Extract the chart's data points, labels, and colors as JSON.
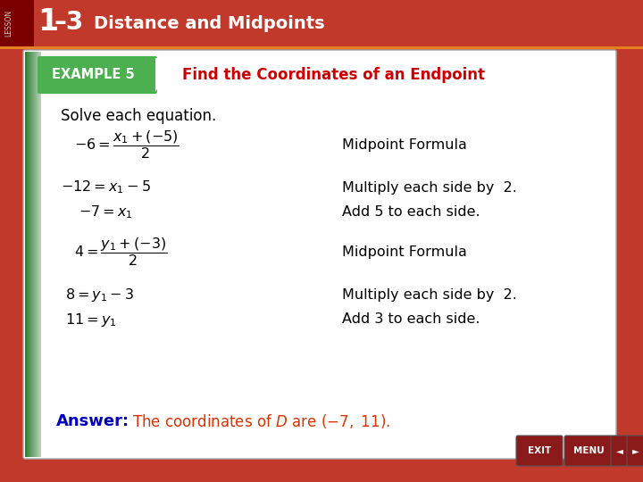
{
  "bg_color_outer": "#c0392b",
  "header_bg": "#c0392b",
  "header_text_color": "#ffffff",
  "header_fontsize": 14,
  "lesson_tab_color": "#8b0000",
  "content_bg": "#ffffff",
  "content_border_color": "#cccccc",
  "green_bar_left": "#2e7d32",
  "example_label": "EXAMPLE 5",
  "example_label_bg": "#4caf50",
  "example_label_color": "#ffffff",
  "example_title": "Find the Coordinates of an Endpoint",
  "example_title_color": "#cc0000",
  "solve_text": "Solve each equation.",
  "answer_label": "Answer:",
  "answer_label_color": "#0000bb",
  "answer_text_color": "#dd3300",
  "nav_btn_color": "#8b0000",
  "nav_btn_border": "#666666"
}
